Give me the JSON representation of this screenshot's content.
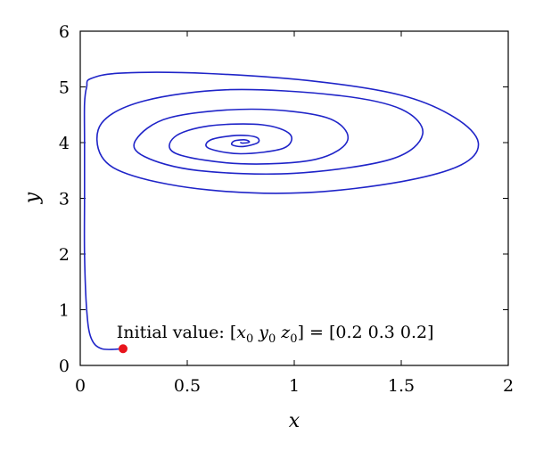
{
  "chart_data": {
    "type": "line",
    "title": "",
    "xlabel": "x",
    "ylabel": "y",
    "xlim": [
      0,
      2
    ],
    "ylim": [
      0,
      6
    ],
    "xticks": [
      0,
      0.5,
      1,
      1.5,
      2
    ],
    "yticks": [
      0,
      1,
      2,
      3,
      4,
      5,
      6
    ],
    "xtick_labels": [
      "0",
      "0.5",
      "1",
      "1.5",
      "2"
    ],
    "ytick_labels": [
      "0",
      "1",
      "2",
      "3",
      "4",
      "5",
      "6"
    ],
    "grid": false,
    "legend": "none",
    "colors": {
      "trajectory": "#1f24c8",
      "initial_point": "#e8141c"
    },
    "series": [
      {
        "name": "",
        "x": [
          0.2,
          0.1,
          0.05,
          0.03,
          0.02,
          0.02,
          0.02,
          0.02,
          0.03,
          0.05,
          0.2,
          0.6,
          1.1,
          1.5,
          1.75,
          1.86,
          1.78,
          1.5,
          1.05,
          0.6,
          0.25,
          0.1,
          0.1,
          0.3,
          0.7,
          1.2,
          1.5,
          1.6,
          1.45,
          1.0,
          0.55,
          0.3,
          0.26,
          0.42,
          0.8,
          1.15,
          1.25,
          1.1,
          0.75,
          0.45,
          0.44,
          0.6,
          0.85,
          0.98,
          0.95,
          0.75,
          0.6,
          0.61,
          0.73,
          0.82,
          0.83,
          0.76,
          0.71,
          0.72,
          0.77,
          0.79,
          0.76,
          0.75
        ],
        "y": [
          0.3,
          0.3,
          0.5,
          1.0,
          2.0,
          3.0,
          4.0,
          4.7,
          5.0,
          5.15,
          5.25,
          5.24,
          5.1,
          4.85,
          4.45,
          4.0,
          3.6,
          3.3,
          3.1,
          3.15,
          3.4,
          3.75,
          4.35,
          4.75,
          4.95,
          4.85,
          4.6,
          4.15,
          3.7,
          3.45,
          3.5,
          3.75,
          4.05,
          4.45,
          4.6,
          4.45,
          4.05,
          3.7,
          3.62,
          3.8,
          4.1,
          4.3,
          4.32,
          4.15,
          3.9,
          3.8,
          3.9,
          4.05,
          4.13,
          4.1,
          4.0,
          3.93,
          3.96,
          4.03,
          4.05,
          4.01,
          3.99,
          4.0
        ]
      }
    ],
    "initial_point": {
      "x": 0.2,
      "y": 0.3
    },
    "annotation": {
      "prefix": "Initial value: [",
      "v1": "x",
      "s1": "0",
      "v2": "y",
      "s2": "0",
      "v3": "z",
      "s3": "0",
      "suffix": "] = [0.2  0.3  0.2]",
      "x": 0.17,
      "y": 0.5
    }
  }
}
